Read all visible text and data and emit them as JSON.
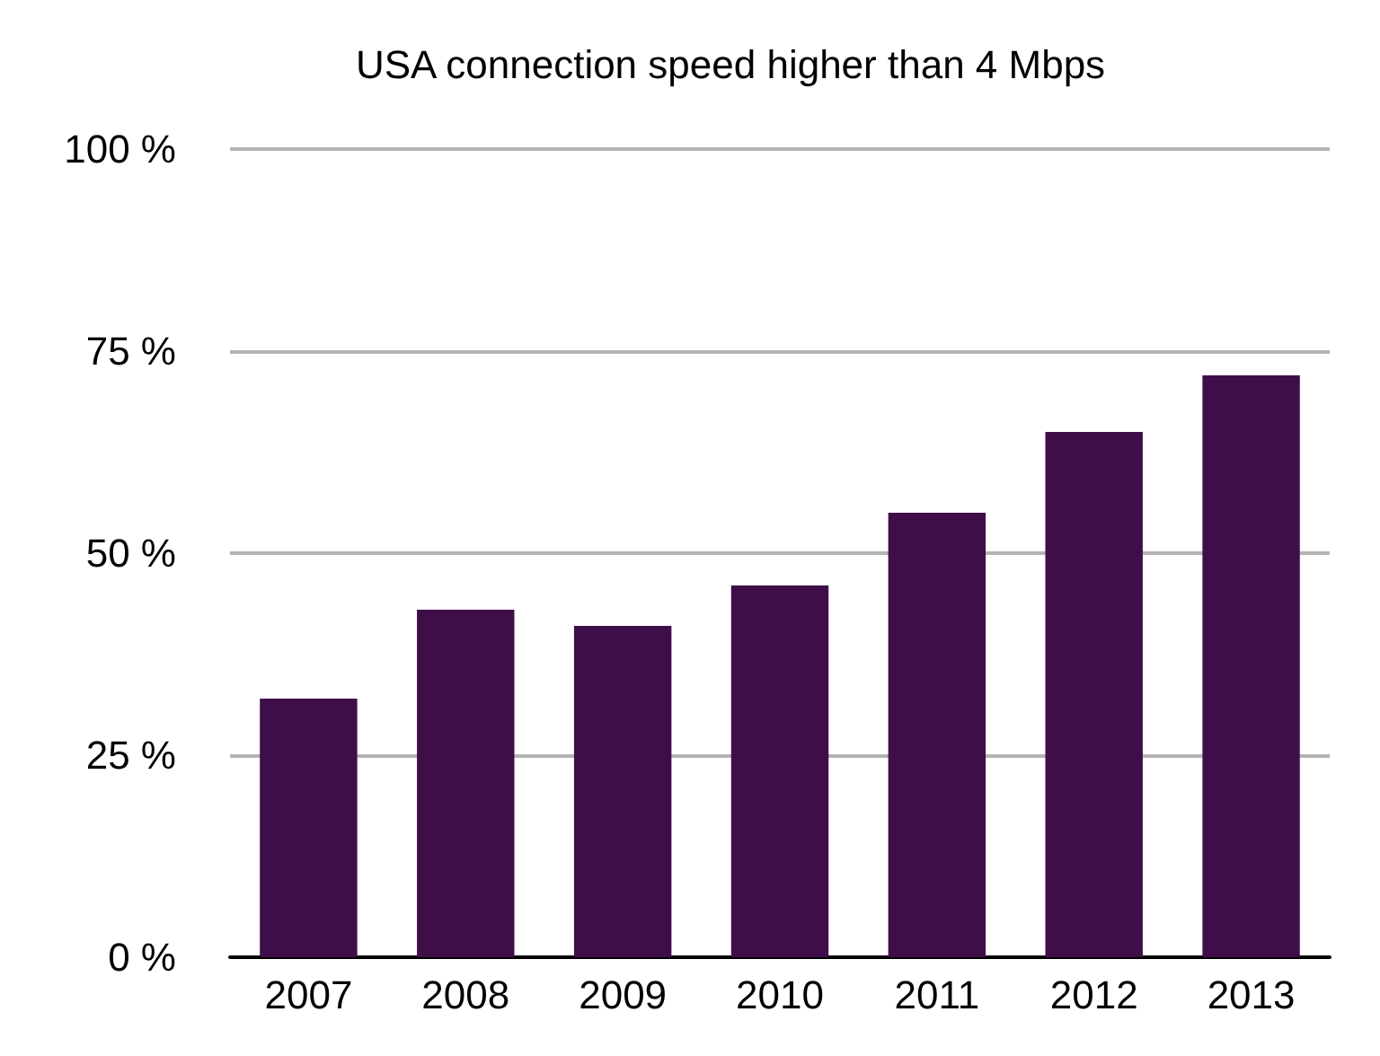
{
  "chart_data": {
    "type": "bar",
    "title": "USA connection speed higher than 4 Mbps",
    "categories": [
      "2007",
      "2008",
      "2009",
      "2010",
      "2011",
      "2012",
      "2013"
    ],
    "values": [
      32,
      43,
      41,
      46,
      55,
      65,
      72
    ],
    "color": "#3f0e48",
    "ylim": [
      0,
      100
    ],
    "yticks": [
      {
        "value": 0,
        "label": "0 %"
      },
      {
        "value": 25,
        "label": "25 %"
      },
      {
        "value": 50,
        "label": "50 %"
      },
      {
        "value": 75,
        "label": "75 %"
      },
      {
        "value": 100,
        "label": "100 %"
      }
    ],
    "grid": "y"
  }
}
